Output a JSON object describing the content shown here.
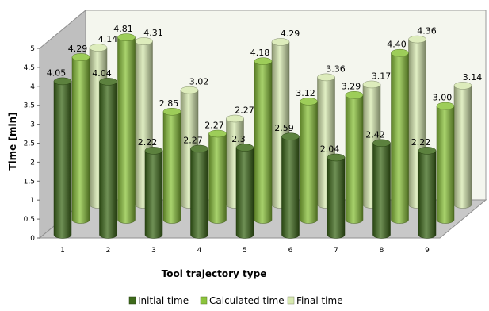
{
  "chart_data": {
    "type": "bar",
    "title": "",
    "xlabel": "Tool trajectory type",
    "ylabel": "Time [min]",
    "ylim": [
      0,
      5
    ],
    "yticks": [
      "0",
      "0.5",
      "1",
      "1.5",
      "2",
      "2.5",
      "3",
      "3.5",
      "4",
      "4.5",
      "5"
    ],
    "categories": [
      "1",
      "2",
      "3",
      "4",
      "5",
      "6",
      "7",
      "8",
      "9"
    ],
    "series": [
      {
        "name": "Initial time",
        "color": "#3f6b1c",
        "values": [
          4.05,
          4.04,
          2.22,
          2.27,
          2.3,
          2.59,
          2.04,
          2.42,
          2.22
        ],
        "labels": [
          "4.05",
          "4.04",
          "2.22",
          "2.27",
          "2.3",
          "2.59",
          "2.04",
          "2.42",
          "2.22"
        ]
      },
      {
        "name": "Calculated time",
        "color": "#8cc43c",
        "values": [
          4.29,
          4.81,
          2.85,
          2.27,
          4.18,
          3.12,
          3.29,
          4.4,
          3.0
        ],
        "labels": [
          "4.29",
          "4.81",
          "2.85",
          "2.27",
          "4.18",
          "3.12",
          "3.29",
          "4.40",
          "3.00"
        ]
      },
      {
        "name": "Final time",
        "color": "#d7e9b0",
        "values": [
          4.14,
          4.31,
          3.02,
          2.27,
          4.29,
          3.36,
          3.17,
          4.36,
          3.14
        ],
        "labels": [
          "4.14",
          "4.31",
          "3.02",
          "2.27",
          "4.29",
          "3.36",
          "3.17",
          "4.36",
          "3.14"
        ]
      }
    ],
    "legend_position": "bottom",
    "grid": false,
    "style": "3d-cylinder"
  }
}
